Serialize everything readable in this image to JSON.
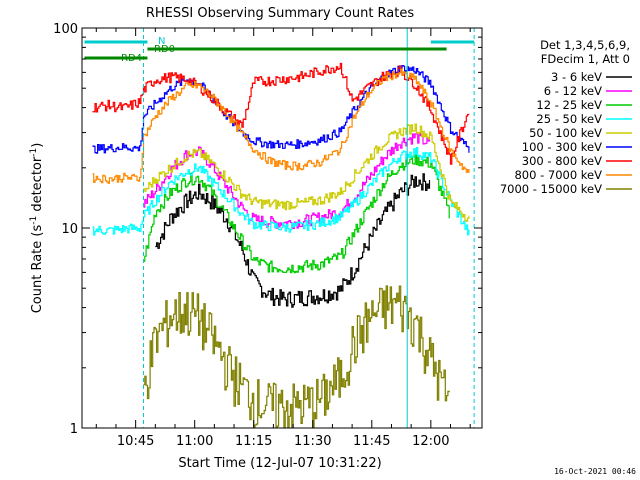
{
  "chart_data": {
    "type": "line",
    "title": "RHESSI Observing Summary Count Rates",
    "xlabel": "Start Time (12-Jul-07 10:31:22)",
    "ylabel": "Count Rate (s",
    "ylabel_sup": "-1",
    "ylabel_tail": " detector",
    "ylabel_end": ")",
    "yscale": "log",
    "ylim": [
      1,
      100
    ],
    "y_ticks": [
      1,
      10,
      100
    ],
    "y_tick_labels": [
      "1",
      "10",
      "100"
    ],
    "x_start_min": 631.37,
    "xlim_minutes": [
      631.37,
      733.0
    ],
    "x_ticks_min": [
      645,
      660,
      675,
      690,
      705,
      720
    ],
    "x_tick_labels": [
      "10:45",
      "11:00",
      "11:15",
      "11:30",
      "11:45",
      "12:00"
    ],
    "legend_header": [
      "Det 1,3,4,5,6,9,",
      "FDecim 1, Att 0"
    ],
    "legend_position": "right",
    "series": [
      {
        "name": "3 - 6 keV",
        "color": "#000000",
        "values": [
          null,
          null,
          null,
          null,
          null,
          8.1,
          11.4,
          13.7,
          15.1,
          13.6,
          11.2,
          7.8,
          5.4,
          4.6,
          4.4,
          4.5,
          4.6,
          4.9,
          6.0,
          8.4,
          11.5,
          14.8,
          17.4,
          16.8,
          null,
          null
        ]
      },
      {
        "name": "6 - 12 keV",
        "color": "#ff00ff",
        "values": [
          null,
          null,
          null,
          null,
          13.2,
          15.4,
          19.7,
          23.5,
          24.1,
          20.9,
          16.1,
          12.6,
          11.0,
          10.7,
          10.6,
          10.8,
          11.3,
          12.1,
          13.9,
          17.5,
          22.4,
          26.8,
          28.7,
          26.1,
          null,
          null
        ]
      },
      {
        "name": "12 - 25 keV",
        "color": "#00cc00",
        "values": [
          null,
          null,
          null,
          null,
          6.9,
          12.1,
          15.1,
          17.4,
          17.9,
          15.4,
          11.6,
          8.6,
          6.9,
          6.4,
          6.3,
          6.4,
          6.6,
          7.2,
          9.1,
          12.5,
          16.8,
          20.6,
          22.1,
          21.0,
          11.2,
          null
        ]
      },
      {
        "name": "25 - 50 keV",
        "color": "#00ffff",
        "values": [
          9.8,
          9.7,
          9.9,
          10.0,
          11.4,
          13.8,
          17.2,
          19.2,
          20.1,
          17.4,
          14.3,
          11.7,
          10.5,
          10.2,
          10.1,
          10.2,
          10.6,
          11.4,
          12.9,
          15.8,
          19.4,
          22.8,
          24.1,
          22.4,
          13.6,
          9.1
        ]
      },
      {
        "name": "50 - 100 keV",
        "color": "#cccc00",
        "values": [
          null,
          null,
          null,
          null,
          15.2,
          17.6,
          20.2,
          23.1,
          23.8,
          21.4,
          17.9,
          14.8,
          13.5,
          13.2,
          13.1,
          13.3,
          13.8,
          15.1,
          17.8,
          22.1,
          26.8,
          30.2,
          32.0,
          28.4,
          13.4,
          11.0
        ]
      },
      {
        "name": "100 - 300 keV",
        "color": "#0000ff",
        "values": [
          24.8,
          25.1,
          25.4,
          25.0,
          36.2,
          42.1,
          50.3,
          55.4,
          53.2,
          45.6,
          36.4,
          30.1,
          27.2,
          26.3,
          26.0,
          26.4,
          27.6,
          30.4,
          37.8,
          48.4,
          57.6,
          63.0,
          61.8,
          52.4,
          31.2,
          24.4
        ]
      },
      {
        "name": "300 - 800 keV",
        "color": "#ff0000",
        "values": [
          40.1,
          41.0,
          39.8,
          42.6,
          49.3,
          55.2,
          56.8,
          55.4,
          51.1,
          45.2,
          38.0,
          32.4,
          53.8,
          54.5,
          55.8,
          57.1,
          61.2,
          64.8,
          43.2,
          50.6,
          57.8,
          61.4,
          52.3,
          38.7,
          22.1,
          40.5
        ]
      },
      {
        "name": "800 - 7000 keV",
        "color": "#ff8800",
        "values": [
          17.8,
          17.6,
          17.9,
          17.7,
          28.5,
          36.4,
          44.6,
          51.2,
          51.6,
          46.2,
          37.5,
          29.4,
          24.8,
          21.6,
          20.6,
          20.4,
          21.4,
          24.8,
          34.6,
          46.9,
          56.3,
          59.7,
          55.6,
          42.1,
          24.3,
          18.1
        ]
      },
      {
        "name": "7000 - 15000 keV",
        "color": "#808000",
        "values": [
          null,
          null,
          null,
          null,
          1.6,
          2.8,
          3.7,
          3.9,
          3.6,
          2.9,
          2.1,
          1.6,
          1.4,
          1.3,
          1.3,
          1.3,
          1.4,
          1.8,
          2.6,
          3.5,
          4.1,
          4.2,
          3.4,
          2.2,
          1.3,
          null
        ]
      }
    ],
    "x_minutes": [
      634,
      638,
      642,
      646,
      647,
      650,
      654,
      658,
      661,
      664,
      668,
      672,
      675,
      679,
      683,
      687,
      692,
      697,
      700,
      704,
      708,
      712,
      716,
      720,
      725,
      730
    ],
    "flags": [
      {
        "label": "N",
        "color": "#00cccc",
        "segments": [
          [
            632,
            648
          ],
          [
            720,
            731
          ]
        ]
      },
      {
        "label": "RD0",
        "color": "#008800",
        "segments": [
          [
            648,
            724
          ]
        ]
      },
      {
        "label": "RD4",
        "color": "#008800",
        "segments": [
          [
            632,
            648
          ]
        ]
      }
    ],
    "vertical_markers": [
      {
        "x_min": 647,
        "color": "#00cccc",
        "style": "dashed"
      },
      {
        "x_min": 714,
        "color": "#00cccc",
        "style": "solid"
      },
      {
        "x_min": 731,
        "color": "#00cccc",
        "style": "dashed"
      }
    ],
    "grid": false
  },
  "footer": {
    "timestamp": "16-Oct-2021 00:46"
  }
}
